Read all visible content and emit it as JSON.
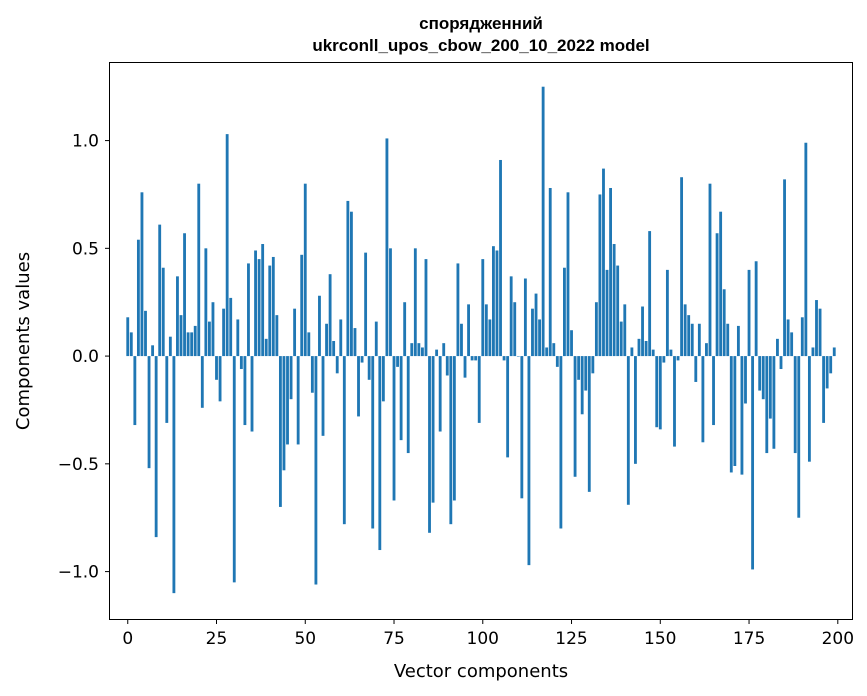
{
  "chart_data": {
    "type": "bar",
    "title": "спорядженний",
    "subtitle": "ukrconll_upos_cbow_200_10_2022 model",
    "xlabel": "Vector components",
    "ylabel": "Components values",
    "xlim": [
      -5,
      204
    ],
    "ylim": [
      -1.22,
      1.36
    ],
    "xticks": [
      0,
      25,
      50,
      75,
      100,
      125,
      150,
      175,
      200
    ],
    "xtick_labels": [
      "0",
      "25",
      "50",
      "75",
      "100",
      "125",
      "150",
      "175",
      "200"
    ],
    "yticks": [
      -1.0,
      -0.5,
      0.0,
      0.5,
      1.0
    ],
    "ytick_labels": [
      "−1.0",
      "−0.5",
      "0.0",
      "0.5",
      "1.0"
    ],
    "bar_color": "#1f77b4",
    "values": [
      0.18,
      0.11,
      -0.32,
      0.54,
      0.76,
      0.21,
      -0.52,
      0.05,
      -0.84,
      0.61,
      0.41,
      -0.31,
      0.09,
      -1.1,
      0.37,
      0.19,
      0.57,
      0.11,
      0.11,
      0.14,
      0.8,
      -0.24,
      0.5,
      0.16,
      0.25,
      -0.11,
      -0.21,
      0.22,
      1.03,
      0.27,
      -1.05,
      0.17,
      -0.06,
      -0.32,
      0.43,
      -0.35,
      0.49,
      0.45,
      0.52,
      0.08,
      0.42,
      0.46,
      0.19,
      -0.7,
      -0.53,
      -0.41,
      -0.2,
      0.22,
      -0.41,
      0.47,
      0.8,
      0.11,
      -0.17,
      -1.06,
      0.28,
      -0.37,
      0.15,
      0.38,
      0.07,
      -0.08,
      0.17,
      -0.78,
      0.72,
      0.67,
      0.13,
      -0.28,
      -0.03,
      0.48,
      -0.11,
      -0.8,
      0.16,
      -0.9,
      -0.21,
      1.01,
      0.5,
      -0.67,
      -0.05,
      -0.39,
      0.25,
      -0.45,
      0.06,
      0.5,
      0.06,
      0.04,
      0.45,
      -0.82,
      -0.68,
      0.03,
      -0.35,
      0.06,
      -0.09,
      -0.78,
      -0.67,
      0.43,
      0.15,
      -0.1,
      0.24,
      -0.02,
      -0.02,
      -0.31,
      0.45,
      0.24,
      0.17,
      0.51,
      0.49,
      0.91,
      -0.02,
      -0.47,
      0.37,
      0.25,
      0.0,
      -0.66,
      0.36,
      -0.97,
      0.22,
      0.29,
      0.17,
      1.25,
      0.04,
      0.78,
      0.06,
      -0.05,
      -0.8,
      0.41,
      0.76,
      0.12,
      -0.56,
      -0.11,
      -0.27,
      -0.16,
      -0.63,
      -0.08,
      0.25,
      0.75,
      0.87,
      0.4,
      0.78,
      0.52,
      0.42,
      0.16,
      0.24,
      -0.69,
      0.04,
      -0.5,
      0.08,
      0.23,
      0.07,
      0.58,
      0.03,
      -0.33,
      -0.34,
      -0.03,
      0.4,
      0.03,
      -0.42,
      -0.02,
      0.83,
      0.24,
      0.19,
      0.15,
      -0.12,
      0.15,
      -0.4,
      0.06,
      0.8,
      -0.32,
      0.57,
      0.67,
      0.31,
      0.15,
      -0.54,
      -0.51,
      0.14,
      -0.55,
      -0.22,
      0.4,
      -0.99,
      0.44,
      -0.16,
      -0.2,
      -0.45,
      -0.29,
      -0.43,
      0.08,
      -0.06,
      0.82,
      0.17,
      0.11,
      -0.45,
      -0.75,
      0.18,
      0.99,
      -0.49,
      0.04,
      0.26,
      0.22,
      -0.31,
      -0.15,
      -0.08,
      0.04
    ]
  }
}
